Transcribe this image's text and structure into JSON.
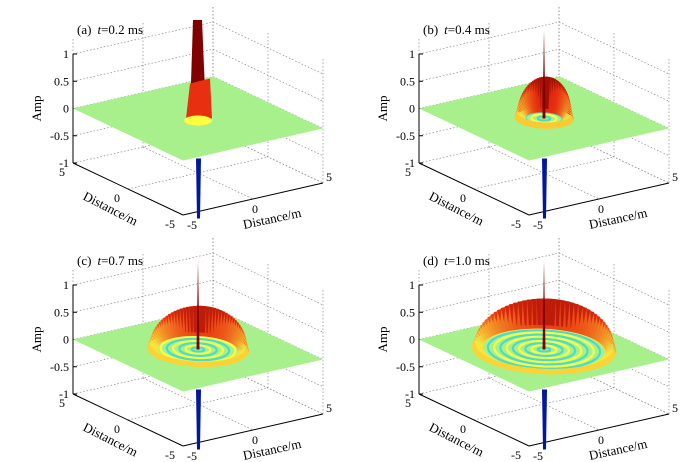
{
  "chart_data": [
    {
      "type": "surface3d",
      "panel": "(a)",
      "t_label": "t",
      "t_value": "=0.2 ms",
      "time_ms": 0.2,
      "front_radius_m": 0.5,
      "crest_amp": 0.55,
      "zlabel": "Amp",
      "xlabel": "Distance/m",
      "ylabel": "Distance/m",
      "zlim": [
        -1,
        1
      ],
      "zticks": [
        "1",
        "0.5",
        "0",
        "-0.5",
        "-1"
      ],
      "xticks": [
        "5",
        "0",
        "-5"
      ],
      "yticks": [
        "-5",
        "0",
        "5"
      ],
      "xlim": [
        -5,
        5
      ],
      "ylim": [
        -5,
        5
      ],
      "grid": true
    },
    {
      "type": "surface3d",
      "panel": "(b)",
      "t_label": "t",
      "t_value": "=0.4 ms",
      "time_ms": 0.4,
      "front_radius_m": 1.5,
      "crest_amp": 0.6,
      "zlabel": "Amp",
      "xlabel": "Distance/m",
      "ylabel": "Distance/m",
      "zlim": [
        -1,
        1
      ],
      "zticks": [
        "1",
        "0.5",
        "0",
        "-0.5",
        "-1"
      ],
      "xticks": [
        "5",
        "0",
        "-5"
      ],
      "yticks": [
        "-5",
        "0",
        "5"
      ],
      "xlim": [
        -5,
        5
      ],
      "ylim": [
        -5,
        5
      ],
      "grid": true
    },
    {
      "type": "surface3d",
      "panel": "(c)",
      "t_label": "t",
      "t_value": "=0.7 ms",
      "time_ms": 0.7,
      "front_radius_m": 2.7,
      "crest_amp": 0.5,
      "zlabel": "Amp",
      "xlabel": "Distance/m",
      "ylabel": "Distance/m",
      "zlim": [
        -1,
        1
      ],
      "zticks": [
        "1",
        "0.5",
        "0",
        "-0.5",
        "-1"
      ],
      "xticks": [
        "5",
        "0",
        "-5"
      ],
      "yticks": [
        "-5",
        "0",
        "5"
      ],
      "xlim": [
        -5,
        5
      ],
      "ylim": [
        -5,
        5
      ],
      "grid": true
    },
    {
      "type": "surface3d",
      "panel": "(d)",
      "t_label": "t",
      "t_value": "=1.0 ms",
      "time_ms": 1.0,
      "front_radius_m": 3.9,
      "crest_amp": 0.5,
      "zlabel": "Amp",
      "xlabel": "Distance/m",
      "ylabel": "Distance/m",
      "zlim": [
        -1,
        1
      ],
      "zticks": [
        "1",
        "0.5",
        "0",
        "-0.5",
        "-1"
      ],
      "xticks": [
        "5",
        "0",
        "-5"
      ],
      "yticks": [
        "-5",
        "0",
        "5"
      ],
      "xlim": [
        -5,
        5
      ],
      "ylim": [
        -5,
        5
      ],
      "grid": true
    }
  ],
  "colors": {
    "plane": "#a8f08c",
    "ring_low": "#40d8d0",
    "ring_high": "#ffff40",
    "crest_mid": "#e83010",
    "crest_top": "#800000",
    "negative": "#0018a0"
  }
}
